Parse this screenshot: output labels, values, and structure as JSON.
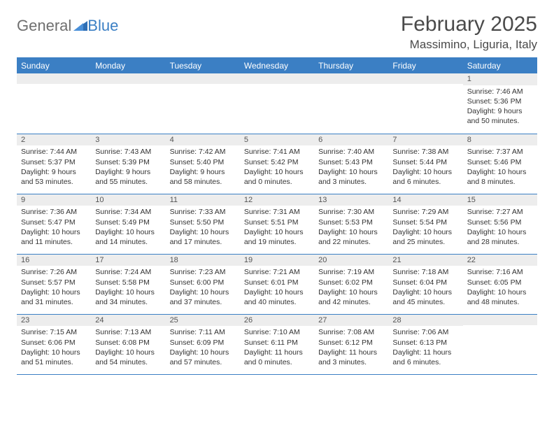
{
  "brand": {
    "word1": "General",
    "word2": "Blue"
  },
  "title": "February 2025",
  "location": "Massimino, Liguria, Italy",
  "colors": {
    "header_bg": "#3b7fc4",
    "header_text": "#ffffff",
    "daynum_bg": "#ededed",
    "border": "#3b7fc4",
    "body_text": "#333333",
    "logo_gray": "#6f6f6f",
    "logo_blue": "#3b7fc4"
  },
  "day_headers": [
    "Sunday",
    "Monday",
    "Tuesday",
    "Wednesday",
    "Thursday",
    "Friday",
    "Saturday"
  ],
  "weeks": [
    [
      {
        "n": "",
        "lines": []
      },
      {
        "n": "",
        "lines": []
      },
      {
        "n": "",
        "lines": []
      },
      {
        "n": "",
        "lines": []
      },
      {
        "n": "",
        "lines": []
      },
      {
        "n": "",
        "lines": []
      },
      {
        "n": "1",
        "lines": [
          "Sunrise: 7:46 AM",
          "Sunset: 5:36 PM",
          "Daylight: 9 hours and 50 minutes."
        ]
      }
    ],
    [
      {
        "n": "2",
        "lines": [
          "Sunrise: 7:44 AM",
          "Sunset: 5:37 PM",
          "Daylight: 9 hours and 53 minutes."
        ]
      },
      {
        "n": "3",
        "lines": [
          "Sunrise: 7:43 AM",
          "Sunset: 5:39 PM",
          "Daylight: 9 hours and 55 minutes."
        ]
      },
      {
        "n": "4",
        "lines": [
          "Sunrise: 7:42 AM",
          "Sunset: 5:40 PM",
          "Daylight: 9 hours and 58 minutes."
        ]
      },
      {
        "n": "5",
        "lines": [
          "Sunrise: 7:41 AM",
          "Sunset: 5:42 PM",
          "Daylight: 10 hours and 0 minutes."
        ]
      },
      {
        "n": "6",
        "lines": [
          "Sunrise: 7:40 AM",
          "Sunset: 5:43 PM",
          "Daylight: 10 hours and 3 minutes."
        ]
      },
      {
        "n": "7",
        "lines": [
          "Sunrise: 7:38 AM",
          "Sunset: 5:44 PM",
          "Daylight: 10 hours and 6 minutes."
        ]
      },
      {
        "n": "8",
        "lines": [
          "Sunrise: 7:37 AM",
          "Sunset: 5:46 PM",
          "Daylight: 10 hours and 8 minutes."
        ]
      }
    ],
    [
      {
        "n": "9",
        "lines": [
          "Sunrise: 7:36 AM",
          "Sunset: 5:47 PM",
          "Daylight: 10 hours and 11 minutes."
        ]
      },
      {
        "n": "10",
        "lines": [
          "Sunrise: 7:34 AM",
          "Sunset: 5:49 PM",
          "Daylight: 10 hours and 14 minutes."
        ]
      },
      {
        "n": "11",
        "lines": [
          "Sunrise: 7:33 AM",
          "Sunset: 5:50 PM",
          "Daylight: 10 hours and 17 minutes."
        ]
      },
      {
        "n": "12",
        "lines": [
          "Sunrise: 7:31 AM",
          "Sunset: 5:51 PM",
          "Daylight: 10 hours and 19 minutes."
        ]
      },
      {
        "n": "13",
        "lines": [
          "Sunrise: 7:30 AM",
          "Sunset: 5:53 PM",
          "Daylight: 10 hours and 22 minutes."
        ]
      },
      {
        "n": "14",
        "lines": [
          "Sunrise: 7:29 AM",
          "Sunset: 5:54 PM",
          "Daylight: 10 hours and 25 minutes."
        ]
      },
      {
        "n": "15",
        "lines": [
          "Sunrise: 7:27 AM",
          "Sunset: 5:56 PM",
          "Daylight: 10 hours and 28 minutes."
        ]
      }
    ],
    [
      {
        "n": "16",
        "lines": [
          "Sunrise: 7:26 AM",
          "Sunset: 5:57 PM",
          "Daylight: 10 hours and 31 minutes."
        ]
      },
      {
        "n": "17",
        "lines": [
          "Sunrise: 7:24 AM",
          "Sunset: 5:58 PM",
          "Daylight: 10 hours and 34 minutes."
        ]
      },
      {
        "n": "18",
        "lines": [
          "Sunrise: 7:23 AM",
          "Sunset: 6:00 PM",
          "Daylight: 10 hours and 37 minutes."
        ]
      },
      {
        "n": "19",
        "lines": [
          "Sunrise: 7:21 AM",
          "Sunset: 6:01 PM",
          "Daylight: 10 hours and 40 minutes."
        ]
      },
      {
        "n": "20",
        "lines": [
          "Sunrise: 7:19 AM",
          "Sunset: 6:02 PM",
          "Daylight: 10 hours and 42 minutes."
        ]
      },
      {
        "n": "21",
        "lines": [
          "Sunrise: 7:18 AM",
          "Sunset: 6:04 PM",
          "Daylight: 10 hours and 45 minutes."
        ]
      },
      {
        "n": "22",
        "lines": [
          "Sunrise: 7:16 AM",
          "Sunset: 6:05 PM",
          "Daylight: 10 hours and 48 minutes."
        ]
      }
    ],
    [
      {
        "n": "23",
        "lines": [
          "Sunrise: 7:15 AM",
          "Sunset: 6:06 PM",
          "Daylight: 10 hours and 51 minutes."
        ]
      },
      {
        "n": "24",
        "lines": [
          "Sunrise: 7:13 AM",
          "Sunset: 6:08 PM",
          "Daylight: 10 hours and 54 minutes."
        ]
      },
      {
        "n": "25",
        "lines": [
          "Sunrise: 7:11 AM",
          "Sunset: 6:09 PM",
          "Daylight: 10 hours and 57 minutes."
        ]
      },
      {
        "n": "26",
        "lines": [
          "Sunrise: 7:10 AM",
          "Sunset: 6:11 PM",
          "Daylight: 11 hours and 0 minutes."
        ]
      },
      {
        "n": "27",
        "lines": [
          "Sunrise: 7:08 AM",
          "Sunset: 6:12 PM",
          "Daylight: 11 hours and 3 minutes."
        ]
      },
      {
        "n": "28",
        "lines": [
          "Sunrise: 7:06 AM",
          "Sunset: 6:13 PM",
          "Daylight: 11 hours and 6 minutes."
        ]
      },
      {
        "n": "",
        "lines": []
      }
    ]
  ]
}
